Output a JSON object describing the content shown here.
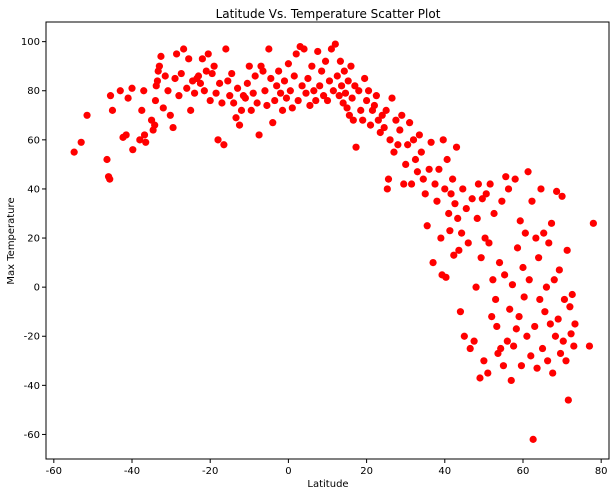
{
  "chart_data": {
    "type": "scatter",
    "title": "Latitude Vs. Temperature Scatter Plot",
    "xlabel": "Latitude",
    "ylabel": "Max Temperature",
    "xlim": [
      -62,
      82
    ],
    "ylim": [
      -70,
      108
    ],
    "xticks": [
      -60,
      -40,
      -20,
      0,
      20,
      40,
      60,
      80
    ],
    "yticks": [
      -60,
      -40,
      -20,
      0,
      20,
      40,
      60,
      80,
      100
    ],
    "grid": false,
    "legend": "none",
    "marker_color": "#ff0000",
    "points": [
      [
        -54.8,
        55
      ],
      [
        -53,
        59
      ],
      [
        -51.5,
        70
      ],
      [
        -46.4,
        52
      ],
      [
        -46,
        45
      ],
      [
        -45.7,
        44
      ],
      [
        -45.5,
        78
      ],
      [
        -45,
        72
      ],
      [
        -43,
        80
      ],
      [
        -42.3,
        61
      ],
      [
        -41.5,
        62
      ],
      [
        -41,
        77
      ],
      [
        -40,
        81
      ],
      [
        -39.8,
        56
      ],
      [
        -38,
        60
      ],
      [
        -37.5,
        72
      ],
      [
        -37,
        80
      ],
      [
        -36.8,
        62
      ],
      [
        -36.5,
        59
      ],
      [
        -35,
        68
      ],
      [
        -34.6,
        64
      ],
      [
        -34.2,
        66
      ],
      [
        -34,
        76
      ],
      [
        -33.8,
        82
      ],
      [
        -33.5,
        84
      ],
      [
        -33.3,
        88
      ],
      [
        -33,
        90
      ],
      [
        -32.6,
        94
      ],
      [
        -32,
        73
      ],
      [
        -31.5,
        86
      ],
      [
        -30.8,
        80
      ],
      [
        -30.2,
        70
      ],
      [
        -29.5,
        65
      ],
      [
        -29,
        85
      ],
      [
        -28.6,
        95
      ],
      [
        -28,
        78
      ],
      [
        -27.4,
        87
      ],
      [
        -26.8,
        97
      ],
      [
        -26,
        81
      ],
      [
        -25.5,
        93
      ],
      [
        -25,
        72
      ],
      [
        -24.5,
        84
      ],
      [
        -24,
        79
      ],
      [
        -23.4,
        85
      ],
      [
        -23,
        86
      ],
      [
        -22.5,
        83
      ],
      [
        -22,
        93
      ],
      [
        -21.5,
        80
      ],
      [
        -21,
        88
      ],
      [
        -20.5,
        95
      ],
      [
        -20,
        76
      ],
      [
        -19.5,
        87
      ],
      [
        -19,
        90
      ],
      [
        -18.5,
        79
      ],
      [
        -18,
        60
      ],
      [
        -17.6,
        83
      ],
      [
        -17,
        75
      ],
      [
        -16.5,
        58
      ],
      [
        -16,
        97
      ],
      [
        -15.5,
        84
      ],
      [
        -15,
        78
      ],
      [
        -14.5,
        87
      ],
      [
        -14,
        75
      ],
      [
        -13.4,
        69
      ],
      [
        -13,
        81
      ],
      [
        -12.5,
        66
      ],
      [
        -12,
        72
      ],
      [
        -11.5,
        78
      ],
      [
        -11,
        77
      ],
      [
        -10.5,
        83
      ],
      [
        -10,
        90
      ],
      [
        -9.5,
        72
      ],
      [
        -9,
        79
      ],
      [
        -8.5,
        86
      ],
      [
        -8,
        75
      ],
      [
        -7.5,
        62
      ],
      [
        -7,
        90
      ],
      [
        -6.5,
        88
      ],
      [
        -6,
        80
      ],
      [
        -5.5,
        74
      ],
      [
        -5,
        97
      ],
      [
        -4.5,
        85
      ],
      [
        -4,
        67
      ],
      [
        -3.5,
        76
      ],
      [
        -3,
        82
      ],
      [
        -2.5,
        88
      ],
      [
        -2,
        79
      ],
      [
        -1.5,
        72
      ],
      [
        -1,
        84
      ],
      [
        -0.5,
        77
      ],
      [
        0,
        91
      ],
      [
        0.5,
        80
      ],
      [
        1,
        73
      ],
      [
        1.5,
        86
      ],
      [
        2,
        95
      ],
      [
        2.5,
        76
      ],
      [
        3,
        98
      ],
      [
        3.5,
        82
      ],
      [
        4,
        97
      ],
      [
        4.5,
        79
      ],
      [
        5,
        85
      ],
      [
        5.5,
        74
      ],
      [
        6,
        90
      ],
      [
        6.5,
        80
      ],
      [
        7,
        76
      ],
      [
        7.5,
        96
      ],
      [
        8,
        82
      ],
      [
        8.5,
        88
      ],
      [
        9,
        78
      ],
      [
        9.5,
        92
      ],
      [
        10,
        76
      ],
      [
        10.5,
        84
      ],
      [
        11,
        97
      ],
      [
        11.5,
        80
      ],
      [
        12,
        99
      ],
      [
        12.5,
        86
      ],
      [
        13,
        78
      ],
      [
        13.3,
        92
      ],
      [
        13.6,
        82
      ],
      [
        14,
        75
      ],
      [
        14.3,
        88
      ],
      [
        14.6,
        79
      ],
      [
        15,
        73
      ],
      [
        15.3,
        84
      ],
      [
        15.6,
        70
      ],
      [
        16,
        90
      ],
      [
        16.3,
        77
      ],
      [
        16.6,
        68
      ],
      [
        17,
        82
      ],
      [
        17.3,
        57
      ],
      [
        18,
        80
      ],
      [
        18.5,
        72
      ],
      [
        19,
        68
      ],
      [
        19.5,
        85
      ],
      [
        20,
        76
      ],
      [
        20.5,
        80
      ],
      [
        21,
        66
      ],
      [
        21.5,
        72
      ],
      [
        22,
        74
      ],
      [
        22.5,
        78
      ],
      [
        23,
        68
      ],
      [
        23.5,
        63
      ],
      [
        24,
        70
      ],
      [
        24.5,
        65
      ],
      [
        25,
        72
      ],
      [
        25.3,
        40
      ],
      [
        25.6,
        44
      ],
      [
        26,
        60
      ],
      [
        26.5,
        77
      ],
      [
        27,
        55
      ],
      [
        27.5,
        68
      ],
      [
        28,
        58
      ],
      [
        28.5,
        64
      ],
      [
        29,
        70
      ],
      [
        29.5,
        42
      ],
      [
        30,
        50
      ],
      [
        30.5,
        58
      ],
      [
        31,
        67
      ],
      [
        31.5,
        42
      ],
      [
        32,
        60
      ],
      [
        32.5,
        52
      ],
      [
        33,
        47
      ],
      [
        33.5,
        62
      ],
      [
        34,
        55
      ],
      [
        34.5,
        44
      ],
      [
        35,
        38
      ],
      [
        35.5,
        25
      ],
      [
        36,
        48
      ],
      [
        36.5,
        59
      ],
      [
        37,
        10
      ],
      [
        37.5,
        42
      ],
      [
        38,
        35
      ],
      [
        38.5,
        48
      ],
      [
        39,
        20
      ],
      [
        39.3,
        5
      ],
      [
        39.6,
        60
      ],
      [
        40,
        40
      ],
      [
        40.3,
        4
      ],
      [
        40.6,
        52
      ],
      [
        41,
        30
      ],
      [
        41.3,
        23
      ],
      [
        41.6,
        38
      ],
      [
        42,
        44
      ],
      [
        42.3,
        13
      ],
      [
        42.6,
        34
      ],
      [
        43,
        57
      ],
      [
        43.3,
        28
      ],
      [
        43.6,
        15
      ],
      [
        44,
        -10
      ],
      [
        44.3,
        22
      ],
      [
        44.6,
        40
      ],
      [
        45,
        -20
      ],
      [
        45.5,
        32
      ],
      [
        46,
        18
      ],
      [
        46.5,
        -25
      ],
      [
        47,
        36
      ],
      [
        47.5,
        -22
      ],
      [
        48,
        0
      ],
      [
        48.3,
        28
      ],
      [
        48.6,
        42
      ],
      [
        49,
        -37
      ],
      [
        49.3,
        12
      ],
      [
        49.6,
        36
      ],
      [
        50,
        -30
      ],
      [
        50.3,
        20
      ],
      [
        50.6,
        38
      ],
      [
        51,
        -35
      ],
      [
        51.3,
        18
      ],
      [
        51.6,
        42
      ],
      [
        52,
        -12
      ],
      [
        52.3,
        3
      ],
      [
        52.6,
        30
      ],
      [
        53,
        -5
      ],
      [
        53.3,
        -16
      ],
      [
        53.6,
        -27
      ],
      [
        54,
        10
      ],
      [
        54.3,
        -25
      ],
      [
        54.6,
        35
      ],
      [
        55,
        -32
      ],
      [
        55.3,
        5
      ],
      [
        55.6,
        45
      ],
      [
        56,
        -22
      ],
      [
        56.3,
        40
      ],
      [
        56.6,
        -9
      ],
      [
        57,
        -38
      ],
      [
        57.3,
        1
      ],
      [
        57.6,
        -24
      ],
      [
        58,
        44
      ],
      [
        58.3,
        -17
      ],
      [
        58.6,
        16
      ],
      [
        59,
        -12
      ],
      [
        59.3,
        27
      ],
      [
        59.6,
        -32
      ],
      [
        60,
        8
      ],
      [
        60.3,
        -4
      ],
      [
        60.6,
        22
      ],
      [
        61,
        -20
      ],
      [
        61.3,
        47
      ],
      [
        61.6,
        3
      ],
      [
        62,
        -28
      ],
      [
        62.3,
        35
      ],
      [
        62.6,
        -62
      ],
      [
        63,
        -16
      ],
      [
        63.3,
        20
      ],
      [
        63.6,
        -33
      ],
      [
        64,
        12
      ],
      [
        64.3,
        -5
      ],
      [
        64.6,
        40
      ],
      [
        65,
        -25
      ],
      [
        65.3,
        22
      ],
      [
        65.6,
        -10
      ],
      [
        66,
        0
      ],
      [
        66.3,
        -30
      ],
      [
        66.6,
        18
      ],
      [
        67,
        -15
      ],
      [
        67.3,
        26
      ],
      [
        67.6,
        -35
      ],
      [
        68,
        3
      ],
      [
        68.3,
        -20
      ],
      [
        68.6,
        39
      ],
      [
        69,
        -13
      ],
      [
        69.3,
        7
      ],
      [
        69.6,
        -27
      ],
      [
        70,
        37
      ],
      [
        70.3,
        -22
      ],
      [
        70.6,
        -5
      ],
      [
        71,
        -30
      ],
      [
        71.3,
        15
      ],
      [
        71.6,
        -46
      ],
      [
        72,
        -8
      ],
      [
        72.3,
        -19
      ],
      [
        72.6,
        -3
      ],
      [
        73,
        -24
      ],
      [
        73.3,
        -15
      ],
      [
        77,
        -24
      ],
      [
        78,
        26
      ]
    ]
  }
}
